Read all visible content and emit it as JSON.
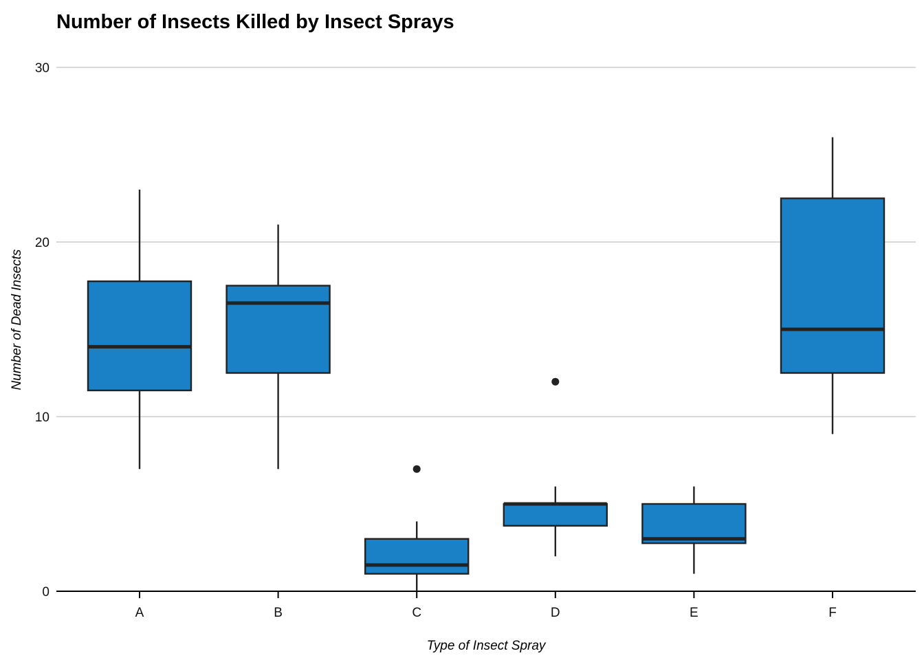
{
  "chart_data": {
    "type": "boxplot",
    "title": "Number of Insects Killed by Insect Sprays",
    "xlabel": "Type of Insect Spray",
    "ylabel": "Number of Dead Insects",
    "ylim": [
      0,
      30
    ],
    "yticks": [
      0,
      10,
      20,
      30
    ],
    "grid": "horizontal",
    "box_color": "#1a81c6",
    "outline_color": "#222222",
    "categories": [
      "A",
      "B",
      "C",
      "D",
      "E",
      "F"
    ],
    "boxes": [
      {
        "category": "A",
        "whisker_low": 7,
        "q1": 11.5,
        "median": 14,
        "q3": 17.75,
        "whisker_high": 23,
        "outliers": []
      },
      {
        "category": "B",
        "whisker_low": 7,
        "q1": 12.5,
        "median": 16.5,
        "q3": 17.5,
        "whisker_high": 21,
        "outliers": []
      },
      {
        "category": "C",
        "whisker_low": 0,
        "q1": 1,
        "median": 1.5,
        "q3": 3,
        "whisker_high": 4,
        "outliers": [
          7
        ]
      },
      {
        "category": "D",
        "whisker_low": 2,
        "q1": 3.75,
        "median": 5,
        "q3": 5,
        "whisker_high": 6,
        "outliers": [
          12
        ]
      },
      {
        "category": "E",
        "whisker_low": 1,
        "q1": 2.75,
        "median": 3,
        "q3": 5,
        "whisker_high": 6,
        "outliers": []
      },
      {
        "category": "F",
        "whisker_low": 9,
        "q1": 12.5,
        "median": 15,
        "q3": 22.5,
        "whisker_high": 26,
        "outliers": []
      }
    ]
  }
}
